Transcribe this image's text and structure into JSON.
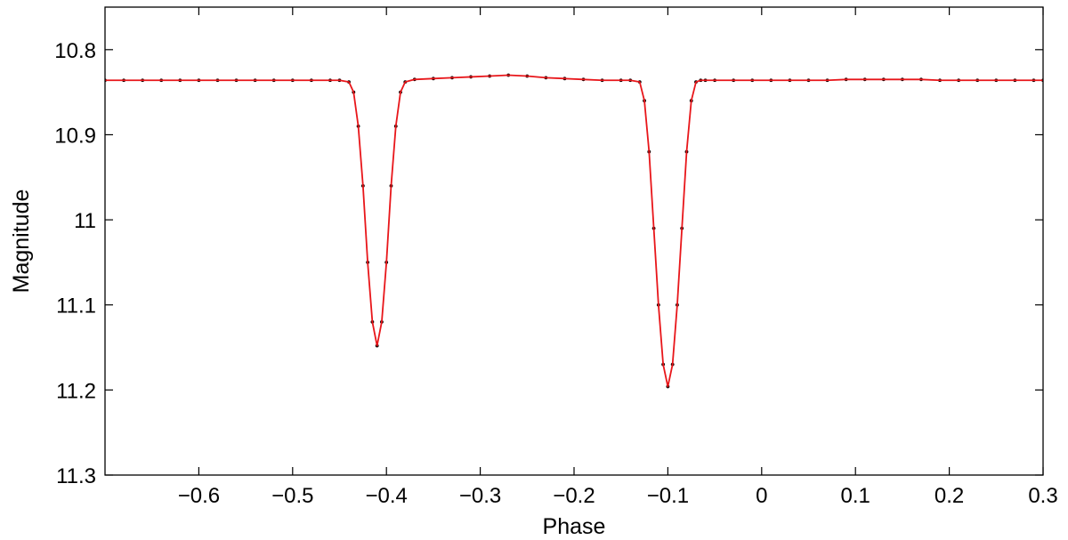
{
  "chart_data": {
    "type": "scatter",
    "xlabel": "Phase",
    "ylabel": "Magnitude",
    "xlim": [
      -0.7,
      0.3
    ],
    "ylim": [
      10.75,
      11.3
    ],
    "y_reversed": true,
    "grid": false,
    "x_ticks": [
      {
        "value": -0.6,
        "label": "−0.6"
      },
      {
        "value": -0.5,
        "label": "−0.5"
      },
      {
        "value": -0.4,
        "label": "−0.4"
      },
      {
        "value": -0.3,
        "label": "−0.3"
      },
      {
        "value": -0.2,
        "label": "−0.2"
      },
      {
        "value": -0.1,
        "label": "−0.1"
      },
      {
        "value": 0.0,
        "label": "0"
      },
      {
        "value": 0.1,
        "label": "0.1"
      },
      {
        "value": 0.2,
        "label": "0.2"
      },
      {
        "value": 0.3,
        "label": "0.3"
      }
    ],
    "y_ticks": [
      {
        "value": 10.8,
        "label": "10.8"
      },
      {
        "value": 10.9,
        "label": "10.9"
      },
      {
        "value": 11.0,
        "label": "11"
      },
      {
        "value": 11.1,
        "label": "11.1"
      },
      {
        "value": 11.2,
        "label": "11.2"
      },
      {
        "value": 11.3,
        "label": "11.3"
      }
    ],
    "series": [
      {
        "kind": "points",
        "color": "#000000",
        "x": [
          -0.7,
          -0.68,
          -0.66,
          -0.64,
          -0.62,
          -0.6,
          -0.58,
          -0.56,
          -0.54,
          -0.52,
          -0.5,
          -0.48,
          -0.46,
          -0.45,
          -0.44,
          -0.435,
          -0.43,
          -0.425,
          -0.42,
          -0.415,
          -0.41,
          -0.405,
          -0.4,
          -0.395,
          -0.39,
          -0.385,
          -0.38,
          -0.37,
          -0.35,
          -0.33,
          -0.31,
          -0.29,
          -0.27,
          -0.25,
          -0.23,
          -0.21,
          -0.19,
          -0.17,
          -0.15,
          -0.14,
          -0.13,
          -0.125,
          -0.12,
          -0.115,
          -0.11,
          -0.105,
          -0.1,
          -0.095,
          -0.09,
          -0.085,
          -0.08,
          -0.075,
          -0.07,
          -0.065,
          -0.06,
          -0.05,
          -0.03,
          -0.01,
          0.01,
          0.03,
          0.05,
          0.07,
          0.09,
          0.11,
          0.13,
          0.15,
          0.17,
          0.19,
          0.21,
          0.23,
          0.25,
          0.27,
          0.29,
          0.3
        ],
        "y": [
          10.836,
          10.836,
          10.836,
          10.836,
          10.836,
          10.836,
          10.836,
          10.836,
          10.836,
          10.836,
          10.836,
          10.836,
          10.836,
          10.836,
          10.838,
          10.85,
          10.89,
          10.96,
          11.05,
          11.12,
          11.148,
          11.12,
          11.05,
          10.96,
          10.89,
          10.85,
          10.838,
          10.835,
          10.834,
          10.833,
          10.832,
          10.831,
          10.83,
          10.831,
          10.833,
          10.834,
          10.835,
          10.836,
          10.836,
          10.836,
          10.838,
          10.86,
          10.92,
          11.01,
          11.1,
          11.17,
          11.196,
          11.17,
          11.1,
          11.01,
          10.92,
          10.86,
          10.838,
          10.836,
          10.836,
          10.836,
          10.836,
          10.836,
          10.836,
          10.836,
          10.836,
          10.836,
          10.835,
          10.835,
          10.835,
          10.835,
          10.835,
          10.836,
          10.836,
          10.836,
          10.836,
          10.836,
          10.836,
          10.836
        ]
      },
      {
        "kind": "line",
        "color": "#e8161a",
        "x": [
          -0.7,
          -0.68,
          -0.66,
          -0.64,
          -0.62,
          -0.6,
          -0.58,
          -0.56,
          -0.54,
          -0.52,
          -0.5,
          -0.48,
          -0.46,
          -0.45,
          -0.44,
          -0.435,
          -0.43,
          -0.425,
          -0.42,
          -0.415,
          -0.41,
          -0.405,
          -0.4,
          -0.395,
          -0.39,
          -0.385,
          -0.38,
          -0.37,
          -0.35,
          -0.33,
          -0.31,
          -0.29,
          -0.27,
          -0.25,
          -0.23,
          -0.21,
          -0.19,
          -0.17,
          -0.15,
          -0.14,
          -0.13,
          -0.125,
          -0.12,
          -0.115,
          -0.11,
          -0.105,
          -0.1,
          -0.095,
          -0.09,
          -0.085,
          -0.08,
          -0.075,
          -0.07,
          -0.065,
          -0.06,
          -0.05,
          -0.03,
          -0.01,
          0.01,
          0.03,
          0.05,
          0.07,
          0.09,
          0.11,
          0.13,
          0.15,
          0.17,
          0.19,
          0.21,
          0.23,
          0.25,
          0.27,
          0.29,
          0.3
        ],
        "y": [
          10.836,
          10.836,
          10.836,
          10.836,
          10.836,
          10.836,
          10.836,
          10.836,
          10.836,
          10.836,
          10.836,
          10.836,
          10.836,
          10.836,
          10.838,
          10.85,
          10.89,
          10.96,
          11.05,
          11.12,
          11.148,
          11.12,
          11.05,
          10.96,
          10.89,
          10.85,
          10.838,
          10.835,
          10.834,
          10.833,
          10.832,
          10.831,
          10.83,
          10.831,
          10.833,
          10.834,
          10.835,
          10.836,
          10.836,
          10.836,
          10.838,
          10.86,
          10.92,
          11.01,
          11.1,
          11.17,
          11.196,
          11.17,
          11.1,
          11.01,
          10.92,
          10.86,
          10.838,
          10.836,
          10.836,
          10.836,
          10.836,
          10.836,
          10.836,
          10.836,
          10.836,
          10.836,
          10.835,
          10.835,
          10.835,
          10.835,
          10.835,
          10.836,
          10.836,
          10.836,
          10.836,
          10.836,
          10.836,
          10.836
        ]
      }
    ]
  }
}
